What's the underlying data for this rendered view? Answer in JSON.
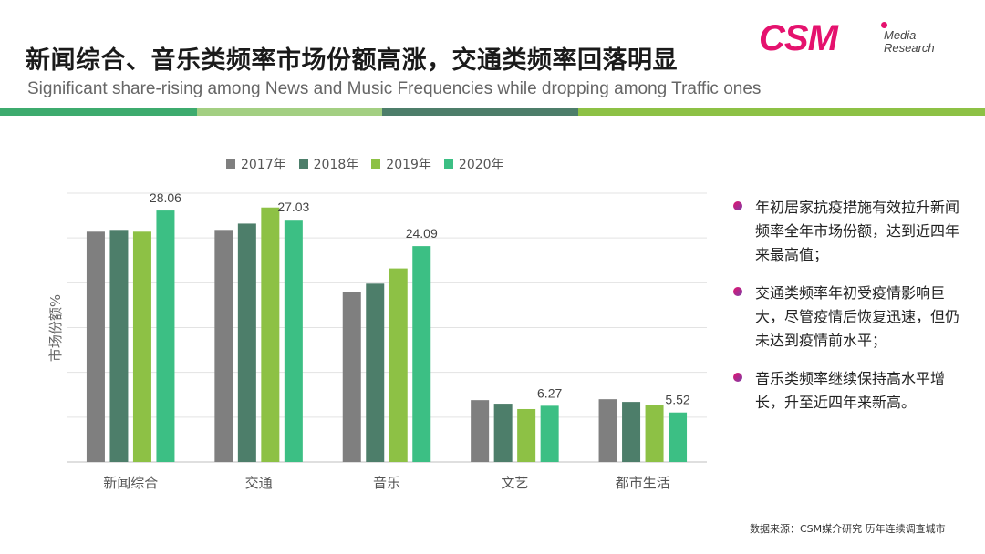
{
  "header": {
    "title_cn": "新闻综合、音乐类频率市场份额高涨，交通类频率回落明显",
    "title_en": "Significant share-rising among News and Music Frequencies while dropping among Traffic ones"
  },
  "logo": {
    "main": "CSM",
    "line1": "Media",
    "line2": "Research"
  },
  "stripe_colors": [
    "#3dab6e",
    "#a3cf82",
    "#4d7e6a",
    "#8dc145"
  ],
  "legend": [
    {
      "label": "2017年",
      "color": "#7f7f7f"
    },
    {
      "label": "2018年",
      "color": "#4d7e6a"
    },
    {
      "label": "2019年",
      "color": "#8dc145"
    },
    {
      "label": "2020年",
      "color": "#3cbf84"
    }
  ],
  "chart_data": {
    "type": "bar",
    "title": "",
    "xlabel": "",
    "ylabel": "市场份额%",
    "ylim": [
      0,
      30
    ],
    "grid": true,
    "categories": [
      "新闻综合",
      "交通",
      "音乐",
      "文艺",
      "都市生活"
    ],
    "series": [
      {
        "name": "2017年",
        "color": "#7f7f7f",
        "values": [
          25.7,
          25.9,
          19.0,
          6.9,
          7.0
        ]
      },
      {
        "name": "2018年",
        "color": "#4d7e6a",
        "values": [
          25.9,
          26.6,
          19.9,
          6.5,
          6.7
        ]
      },
      {
        "name": "2019年",
        "color": "#8dc145",
        "values": [
          25.7,
          28.4,
          21.6,
          5.9,
          6.4
        ]
      },
      {
        "name": "2020年",
        "color": "#3cbf84",
        "values": [
          28.06,
          27.03,
          24.09,
          6.27,
          5.52
        ]
      }
    ],
    "data_labels": {
      "series": "2020年",
      "values": [
        "28.06",
        "27.03",
        "24.09",
        "6.27",
        "5.52"
      ]
    }
  },
  "bullets": [
    "年初居家抗疫措施有效拉升新闻频率全年市场份额，达到近四年来最高值；",
    "交通类频率年初受疫情影响巨大，尽管疫情后恢复迅速，但仍未达到疫情前水平；",
    "音乐类频率继续保持高水平增长，升至近四年来新高。"
  ],
  "source": "数据来源：CSM媒介研究  历年连续调查城市"
}
